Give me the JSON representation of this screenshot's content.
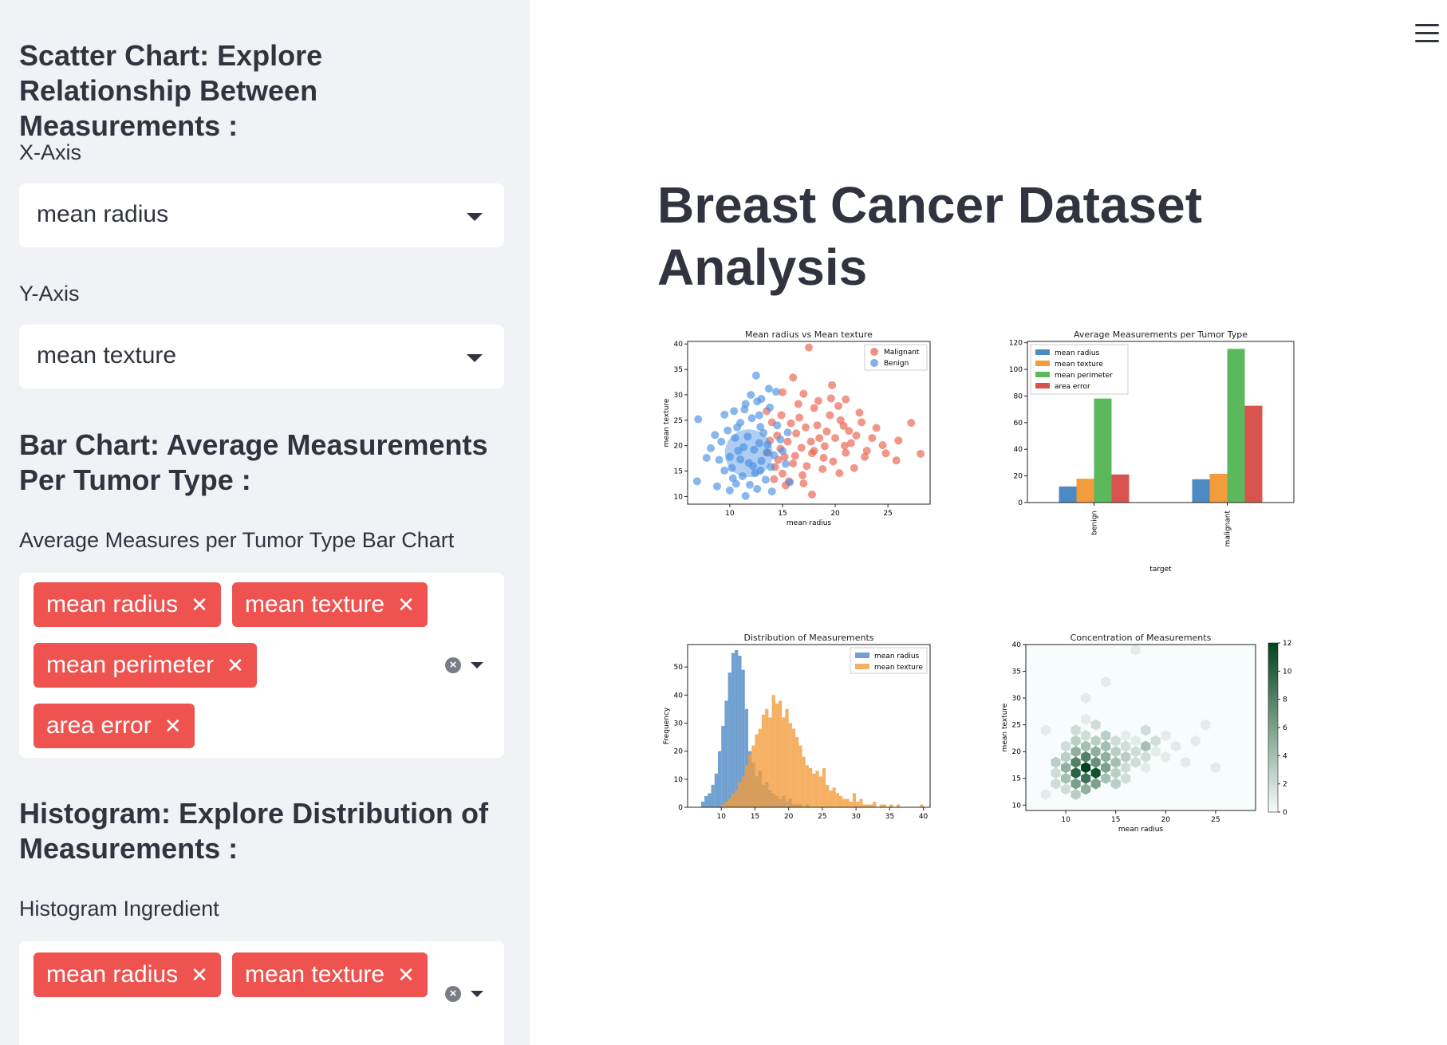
{
  "sidebar": {
    "scatter_heading": "Scatter Chart: Explore Relationship Between Measurements :",
    "x_axis_label": "X-Axis",
    "x_axis_value": "mean radius",
    "y_axis_label": "Y-Axis",
    "y_axis_value": "mean texture",
    "bar_heading": "Bar Chart: Average Measurements Per Tumor Type :",
    "bar_select_label": "Average Measures per Tumor Type Bar Chart",
    "bar_selected": [
      "mean radius",
      "mean texture",
      "mean perimeter",
      "area error"
    ],
    "hist_heading": "Histogram: Explore Distribution of Measurements :",
    "hist_select_label": "Histogram Ingredient",
    "hist_selected": [
      "mean radius",
      "mean texture"
    ]
  },
  "main": {
    "title": "Breast Cancer Dataset Analysis",
    "menu_icon": "hamburger-icon"
  },
  "colors": {
    "chip": "#ef5350",
    "malignant": "#e8604c",
    "benign": "#4a90e2",
    "mean_radius": "#4c8ac4",
    "mean_texture": "#f39c3c",
    "mean_perimeter": "#5cb85c",
    "area_error": "#d9534f"
  },
  "chart_data": [
    {
      "type": "scatter",
      "title": "Mean radius vs Mean texture",
      "xlabel": "mean radius",
      "ylabel": "mean texture",
      "xticks": [
        "10",
        "15",
        "20",
        "25"
      ],
      "yticks": [
        "10",
        "15",
        "20",
        "25",
        "30",
        "35",
        "40"
      ],
      "xlim": [
        6,
        29
      ],
      "ylim": [
        8.5,
        40.5
      ],
      "legend": [
        "Malignant",
        "Benign"
      ],
      "legend_position": "top-right",
      "series": [
        {
          "name": "Malignant",
          "points": [
            [
              17.5,
              39.3
            ],
            [
              20.3,
              27.8
            ],
            [
              27.2,
              24.5
            ],
            [
              28.1,
              18.4
            ],
            [
              25.8,
              17.1
            ],
            [
              23.9,
              23.5
            ],
            [
              22.5,
              24.6
            ],
            [
              21.0,
              29.1
            ],
            [
              19.7,
              31.9
            ],
            [
              16.0,
              33.4
            ],
            [
              15.0,
              30.5
            ],
            [
              16.5,
              28.2
            ],
            [
              18.0,
              27.4
            ],
            [
              19.5,
              26.0
            ],
            [
              20.8,
              23.9
            ],
            [
              22.0,
              22.0
            ],
            [
              21.5,
              20.5
            ],
            [
              18.5,
              21.5
            ],
            [
              17.2,
              23.6
            ],
            [
              16.3,
              22.4
            ],
            [
              15.5,
              20.8
            ],
            [
              14.8,
              19.4
            ],
            [
              14.5,
              22.0
            ],
            [
              14.0,
              24.6
            ],
            [
              13.5,
              26.8
            ],
            [
              15.2,
              17.8
            ],
            [
              16.8,
              19.6
            ],
            [
              17.8,
              18.5
            ],
            [
              19.0,
              19.9
            ],
            [
              20.0,
              21.5
            ],
            [
              21.0,
              18.6
            ],
            [
              22.8,
              17.8
            ],
            [
              24.5,
              20.1
            ],
            [
              26.0,
              21.0
            ],
            [
              23.0,
              19.0
            ],
            [
              19.8,
              16.9
            ],
            [
              18.8,
              15.4
            ],
            [
              17.3,
              16.0
            ],
            [
              16.0,
              16.5
            ],
            [
              15.0,
              14.5
            ],
            [
              14.3,
              15.8
            ],
            [
              15.6,
              13.0
            ],
            [
              17.0,
              12.6
            ],
            [
              17.8,
              10.4
            ],
            [
              20.4,
              14.6
            ],
            [
              21.8,
              15.6
            ],
            [
              18.3,
              24.0
            ],
            [
              19.2,
              22.8
            ],
            [
              20.5,
              25.0
            ],
            [
              16.6,
              25.5
            ],
            [
              14.9,
              26.0
            ],
            [
              13.8,
              21.0
            ],
            [
              15.8,
              24.4
            ],
            [
              17.7,
              20.8
            ],
            [
              18.9,
              17.6
            ],
            [
              20.9,
              20.0
            ],
            [
              16.2,
              18.0
            ],
            [
              14.6,
              17.2
            ],
            [
              13.6,
              18.6
            ],
            [
              19.6,
              29.3
            ],
            [
              22.3,
              26.5
            ],
            [
              18.4,
              28.8
            ],
            [
              17.0,
              30.2
            ],
            [
              23.5,
              21.5
            ],
            [
              24.8,
              18.5
            ],
            [
              16.9,
              14.2
            ],
            [
              15.3,
              12.2
            ],
            [
              14.2,
              13.4
            ],
            [
              21.3,
              22.9
            ],
            [
              18.0,
              19.0
            ]
          ]
        },
        {
          "name": "Benign",
          "points": [
            [
              12.5,
              33.8
            ],
            [
              9.2,
              20.8
            ],
            [
              7.0,
              25.2
            ],
            [
              6.9,
              13.0
            ],
            [
              9.5,
              15.1
            ],
            [
              10.0,
              17.8
            ],
            [
              10.5,
              21.5
            ],
            [
              11.0,
              24.5
            ],
            [
              11.5,
              28.2
            ],
            [
              12.0,
              30.0
            ],
            [
              12.8,
              26.0
            ],
            [
              13.2,
              22.5
            ],
            [
              12.3,
              19.2
            ],
            [
              11.8,
              16.6
            ],
            [
              11.2,
              14.0
            ],
            [
              10.6,
              12.5
            ],
            [
              10.0,
              11.2
            ],
            [
              11.5,
              10.1
            ],
            [
              12.6,
              11.5
            ],
            [
              13.4,
              13.3
            ],
            [
              13.9,
              15.8
            ],
            [
              14.2,
              18.1
            ],
            [
              13.6,
              20.2
            ],
            [
              12.9,
              23.7
            ],
            [
              12.1,
              25.4
            ],
            [
              11.4,
              27.1
            ],
            [
              10.8,
              19.0
            ],
            [
              10.2,
              15.6
            ],
            [
              9.0,
              17.2
            ],
            [
              8.8,
              12.0
            ],
            [
              8.2,
              19.5
            ],
            [
              9.8,
              23.0
            ],
            [
              10.4,
              26.8
            ],
            [
              13.0,
              29.2
            ],
            [
              13.8,
              27.5
            ],
            [
              14.5,
              24.0
            ],
            [
              14.8,
              21.2
            ],
            [
              15.3,
              16.4
            ],
            [
              15.7,
              12.8
            ],
            [
              14.0,
              11.0
            ],
            [
              13.0,
              17.0
            ],
            [
              12.4,
              14.6
            ],
            [
              11.7,
              21.8
            ],
            [
              11.0,
              17.3
            ],
            [
              12.8,
              20.5
            ],
            [
              13.5,
              18.7
            ],
            [
              12.2,
              16.0
            ],
            [
              11.3,
              19.7
            ],
            [
              10.7,
              23.6
            ],
            [
              12.6,
              28.7
            ],
            [
              9.5,
              26.1
            ],
            [
              8.6,
              22.1
            ],
            [
              7.8,
              17.6
            ],
            [
              14.4,
              30.6
            ],
            [
              13.7,
              31.2
            ],
            [
              15.5,
              22.6
            ],
            [
              15.0,
              19.0
            ],
            [
              11.9,
              12.3
            ],
            [
              10.3,
              13.6
            ],
            [
              12.9,
              15.1
            ]
          ]
        }
      ]
    },
    {
      "type": "bar",
      "title": "Average Measurements per Tumor Type",
      "xlabel": "target",
      "ylabel": "",
      "categories": [
        "benign",
        "malignant"
      ],
      "yticks": [
        "0",
        "20",
        "40",
        "60",
        "80",
        "100",
        "120"
      ],
      "ylim": [
        0,
        121
      ],
      "legend_position": "top-left",
      "series": [
        {
          "name": "mean radius",
          "values": [
            12.1,
            17.5
          ]
        },
        {
          "name": "mean texture",
          "values": [
            17.9,
            21.6
          ]
        },
        {
          "name": "mean perimeter",
          "values": [
            78.1,
            115.4
          ]
        },
        {
          "name": "area error",
          "values": [
            21.1,
            72.7
          ]
        }
      ]
    },
    {
      "type": "histogram",
      "title": "Distribution of Measurements",
      "xlabel": "",
      "ylabel": "Frequency",
      "xticks": [
        "10",
        "15",
        "20",
        "25",
        "30",
        "35",
        "40"
      ],
      "yticks": [
        "0",
        "10",
        "20",
        "30",
        "40",
        "50"
      ],
      "xlim": [
        5,
        41
      ],
      "ylim": [
        0,
        58
      ],
      "legend_position": "top-right",
      "series": [
        {
          "name": "mean radius",
          "bin_start": 7.0,
          "bin_width": 0.5,
          "counts": [
            2,
            4,
            5,
            8,
            12,
            20,
            29,
            38,
            48,
            55,
            56,
            54,
            49,
            35,
            20,
            16,
            11,
            13,
            8,
            9,
            6,
            5,
            4,
            3,
            4,
            2,
            3,
            1,
            1,
            1,
            0,
            1
          ]
        },
        {
          "name": "mean texture",
          "bin_start": 10.0,
          "bin_width": 0.5,
          "counts": [
            1,
            2,
            3,
            5,
            6,
            9,
            11,
            15,
            19,
            22,
            26,
            28,
            33,
            35,
            32,
            40,
            37,
            38,
            32,
            35,
            30,
            28,
            25,
            22,
            18,
            15,
            14,
            12,
            13,
            11,
            14,
            8,
            6,
            7,
            5,
            4,
            3,
            3,
            2,
            5,
            2,
            3,
            1,
            1,
            1,
            2,
            0,
            1,
            1,
            0,
            1,
            0,
            1,
            0,
            0,
            0,
            0,
            0,
            0,
            1
          ]
        }
      ]
    },
    {
      "type": "heatmap",
      "title": "Concentration of Measurements",
      "xlabel": "mean radius",
      "ylabel": "mean texture",
      "xticks": [
        "10",
        "15",
        "20",
        "25"
      ],
      "yticks": [
        "10",
        "15",
        "20",
        "25",
        "30",
        "35",
        "40"
      ],
      "xlim": [
        6,
        29
      ],
      "ylim": [
        9,
        40
      ],
      "colorbar_ticks": [
        "0",
        "2",
        "4",
        "6",
        "8",
        "10",
        "12"
      ],
      "colorbar_range": [
        0,
        12
      ],
      "bins": [
        [
          8,
          12,
          1
        ],
        [
          9,
          14,
          2
        ],
        [
          9,
          16,
          2
        ],
        [
          9,
          18,
          3
        ],
        [
          10,
          13,
          2
        ],
        [
          10,
          15,
          4
        ],
        [
          10,
          17,
          5
        ],
        [
          10,
          19,
          3
        ],
        [
          10,
          21,
          2
        ],
        [
          11,
          12,
          3
        ],
        [
          11,
          14,
          6
        ],
        [
          11,
          16,
          10
        ],
        [
          11,
          18,
          8
        ],
        [
          11,
          20,
          5
        ],
        [
          11,
          22,
          3
        ],
        [
          11,
          24,
          2
        ],
        [
          12,
          13,
          5
        ],
        [
          12,
          15,
          9
        ],
        [
          12,
          17,
          12
        ],
        [
          12,
          19,
          8
        ],
        [
          12,
          21,
          4
        ],
        [
          12,
          23,
          2
        ],
        [
          12,
          26,
          1
        ],
        [
          13,
          14,
          6
        ],
        [
          13,
          16,
          11
        ],
        [
          13,
          18,
          7
        ],
        [
          13,
          20,
          5
        ],
        [
          13,
          22,
          3
        ],
        [
          13,
          25,
          2
        ],
        [
          14,
          15,
          4
        ],
        [
          14,
          17,
          6
        ],
        [
          14,
          19,
          5
        ],
        [
          14,
          21,
          4
        ],
        [
          14,
          23,
          3
        ],
        [
          15,
          14,
          3
        ],
        [
          15,
          16,
          3
        ],
        [
          15,
          18,
          4
        ],
        [
          15,
          20,
          3
        ],
        [
          15,
          22,
          2
        ],
        [
          16,
          15,
          2
        ],
        [
          16,
          17,
          2
        ],
        [
          16,
          19,
          3
        ],
        [
          16,
          21,
          2
        ],
        [
          16,
          23,
          1
        ],
        [
          17,
          18,
          2
        ],
        [
          17,
          20,
          2
        ],
        [
          17,
          22,
          1
        ],
        [
          18,
          17,
          1
        ],
        [
          18,
          19,
          2
        ],
        [
          18,
          21,
          4
        ],
        [
          18,
          24,
          2
        ],
        [
          19,
          20,
          1
        ],
        [
          19,
          22,
          2
        ],
        [
          20,
          19,
          1
        ],
        [
          20,
          23,
          1
        ],
        [
          21,
          21,
          1
        ],
        [
          22,
          18,
          1
        ],
        [
          23,
          22,
          1
        ],
        [
          25,
          17,
          1
        ],
        [
          12,
          30,
          1
        ],
        [
          14,
          33,
          1
        ],
        [
          17,
          39,
          1
        ],
        [
          8,
          24,
          1
        ],
        [
          24,
          25,
          1
        ]
      ]
    }
  ]
}
